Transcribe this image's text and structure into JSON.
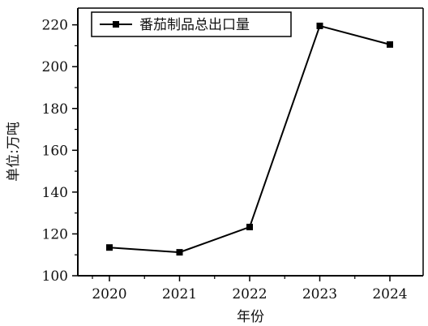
{
  "chart_data": {
    "type": "line",
    "title": "",
    "xlabel": "年份",
    "ylabel": "单位:万吨",
    "categories": [
      "2020",
      "2021",
      "2022",
      "2023",
      "2024"
    ],
    "series": [
      {
        "name": "番茄制品总出口量",
        "values": [
          113.5,
          111.2,
          123.3,
          219.5,
          210.6
        ]
      }
    ],
    "ylim": [
      100,
      228
    ],
    "yticks": [
      100,
      120,
      140,
      160,
      180,
      200,
      220
    ],
    "grid": false,
    "legend_position": "top-left",
    "marker": "square",
    "line_color": "#000000"
  }
}
